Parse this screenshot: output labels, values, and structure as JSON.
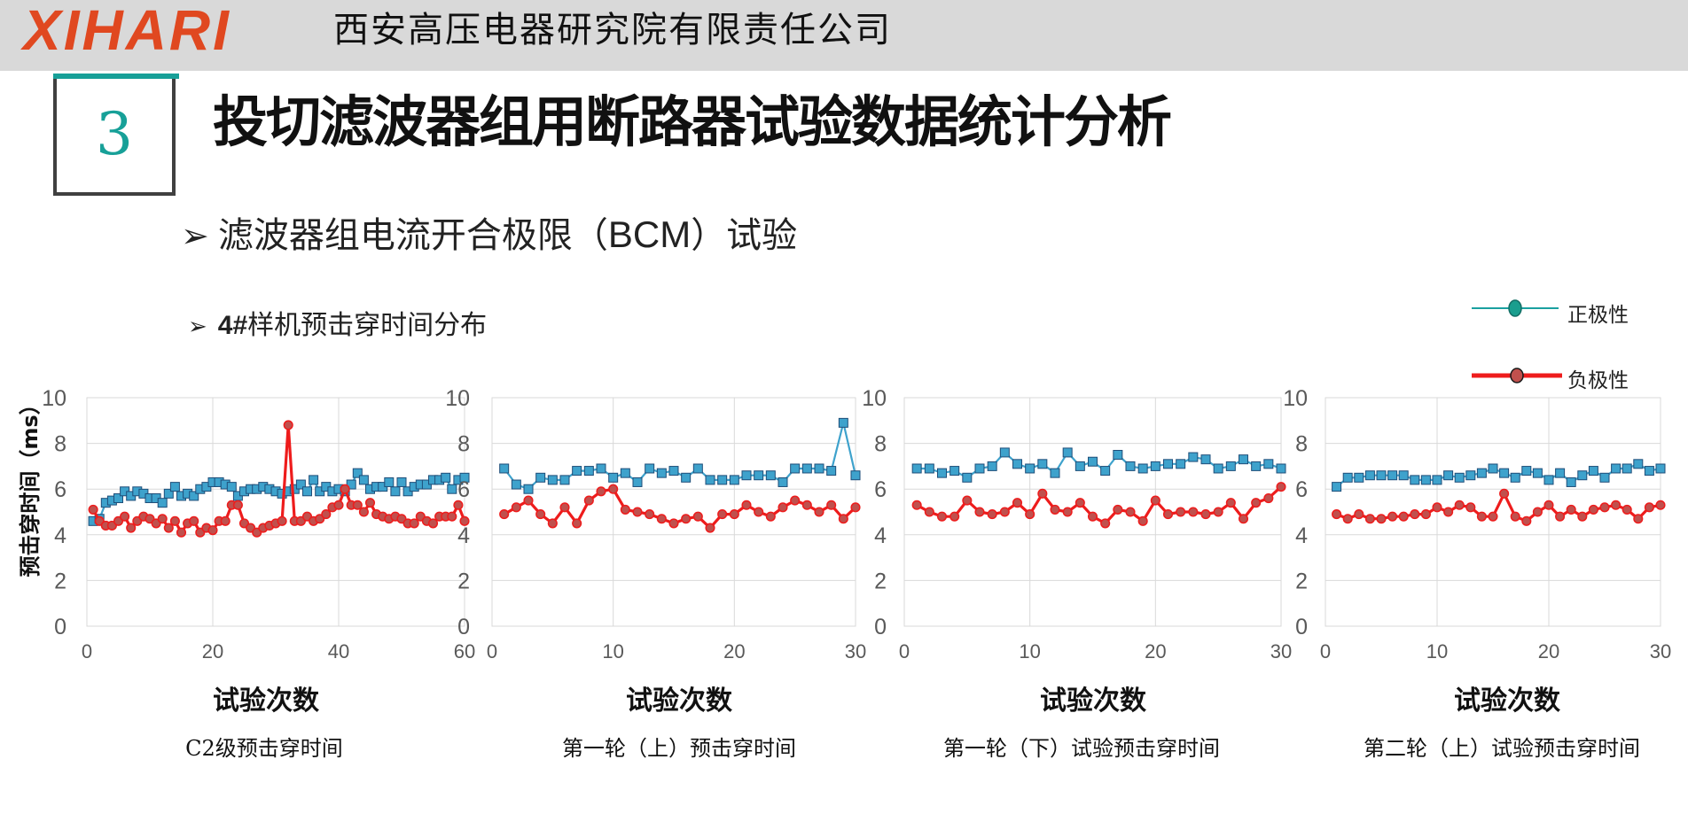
{
  "header": {
    "logo": "XIHARI",
    "company": "西安高压电器研究院有限责任公司"
  },
  "section": {
    "number": "3",
    "title": "投切滤波器组用断路器试验数据统计分析"
  },
  "subtitle": {
    "arrow": "➢",
    "pre": "滤波器组电流开合极限（",
    "latin": "BCM",
    "post": "）试验"
  },
  "subheading": {
    "arrow": "➢",
    "bold": "4#",
    "rest": "样机预击穿时间分布"
  },
  "legend": {
    "positive": "正极性",
    "negative": "负极性"
  },
  "colors": {
    "positive_line": "#3ea2cc",
    "positive_marker": "#3ea2cc",
    "negative_line": "#ee1c1c",
    "negative_marker": "#c0504d",
    "legend_positive_line": "#1aa0a0",
    "legend_positive_marker": "#1a9e8e",
    "grid": "#d9d9d9",
    "axis_text": "#595959"
  },
  "shared_ylabel": "预击穿时间（ms）",
  "chart_data": [
    {
      "type": "line",
      "caption": "C2级预击穿时间",
      "xlabel": "试验次数",
      "xlim": [
        0,
        60
      ],
      "ylim": [
        0,
        10
      ],
      "xticks": [
        "0",
        "20",
        "40",
        "60"
      ],
      "yticks": [
        "0",
        "2",
        "4",
        "6",
        "8",
        "10"
      ],
      "grid": true,
      "series": [
        {
          "name": "正极性",
          "marker": "square",
          "x": [
            1,
            2,
            3,
            4,
            5,
            6,
            7,
            8,
            9,
            10,
            11,
            12,
            13,
            14,
            15,
            16,
            17,
            18,
            19,
            20,
            21,
            22,
            23,
            24,
            25,
            26,
            27,
            28,
            29,
            30,
            31,
            32,
            33,
            34,
            35,
            36,
            37,
            38,
            39,
            40,
            41,
            42,
            43,
            44,
            45,
            46,
            47,
            48,
            49,
            50,
            51,
            52,
            53,
            54,
            55,
            56,
            57,
            58,
            59,
            60
          ],
          "values": [
            4.6,
            4.7,
            5.4,
            5.5,
            5.6,
            5.9,
            5.7,
            5.9,
            5.8,
            5.6,
            5.6,
            5.4,
            5.8,
            6.1,
            5.7,
            5.8,
            5.7,
            6.0,
            6.1,
            6.3,
            6.3,
            6.2,
            6.1,
            5.7,
            5.9,
            6.0,
            6.0,
            6.1,
            6.0,
            5.9,
            5.8,
            5.9,
            6.0,
            6.2,
            5.9,
            6.4,
            5.9,
            6.1,
            5.9,
            6.0,
            5.9,
            6.2,
            6.7,
            6.4,
            6.0,
            6.1,
            6.1,
            6.3,
            5.9,
            6.3,
            5.9,
            6.1,
            6.2,
            6.2,
            6.4,
            6.4,
            6.5,
            6.0,
            6.4,
            6.5
          ]
        },
        {
          "name": "负极性",
          "marker": "circle",
          "x": [
            1,
            2,
            3,
            4,
            5,
            6,
            7,
            8,
            9,
            10,
            11,
            12,
            13,
            14,
            15,
            16,
            17,
            18,
            19,
            20,
            21,
            22,
            23,
            24,
            25,
            26,
            27,
            28,
            29,
            30,
            31,
            32,
            33,
            34,
            35,
            36,
            37,
            38,
            39,
            40,
            41,
            42,
            43,
            44,
            45,
            46,
            47,
            48,
            49,
            50,
            51,
            52,
            53,
            54,
            55,
            56,
            57,
            58,
            59,
            60
          ],
          "values": [
            5.1,
            4.6,
            4.4,
            4.4,
            4.6,
            4.8,
            4.3,
            4.6,
            4.8,
            4.7,
            4.5,
            4.7,
            4.3,
            4.6,
            4.1,
            4.5,
            4.6,
            4.1,
            4.3,
            4.2,
            4.6,
            4.6,
            5.3,
            5.3,
            4.5,
            4.3,
            4.1,
            4.3,
            4.4,
            4.5,
            4.6,
            8.8,
            4.6,
            4.6,
            4.8,
            4.6,
            4.7,
            4.9,
            5.2,
            5.3,
            6.0,
            5.3,
            5.3,
            5.0,
            5.4,
            4.9,
            4.8,
            4.7,
            4.8,
            4.7,
            4.5,
            4.5,
            4.8,
            4.6,
            4.5,
            4.8,
            4.8,
            4.8,
            5.3,
            4.6
          ]
        }
      ]
    },
    {
      "type": "line",
      "caption": "第一轮（上）预击穿时间",
      "xlabel": "试验次数",
      "xlim": [
        0,
        30
      ],
      "ylim": [
        0,
        10
      ],
      "xticks": [
        "0",
        "10",
        "20",
        "30"
      ],
      "yticks": [
        "0",
        "2",
        "4",
        "6",
        "8",
        "10"
      ],
      "grid": true,
      "series": [
        {
          "name": "正极性",
          "marker": "square",
          "x": [
            1,
            2,
            3,
            4,
            5,
            6,
            7,
            8,
            9,
            10,
            11,
            12,
            13,
            14,
            15,
            16,
            17,
            18,
            19,
            20,
            21,
            22,
            23,
            24,
            25,
            26,
            27,
            28,
            29,
            30
          ],
          "values": [
            6.9,
            6.2,
            6.0,
            6.5,
            6.4,
            6.4,
            6.8,
            6.8,
            6.9,
            6.5,
            6.7,
            6.3,
            6.9,
            6.7,
            6.8,
            6.5,
            6.9,
            6.4,
            6.4,
            6.4,
            6.6,
            6.6,
            6.6,
            6.3,
            6.9,
            6.9,
            6.9,
            6.8,
            8.9,
            6.6
          ]
        },
        {
          "name": "负极性",
          "marker": "circle",
          "x": [
            1,
            2,
            3,
            4,
            5,
            6,
            7,
            8,
            9,
            10,
            11,
            12,
            13,
            14,
            15,
            16,
            17,
            18,
            19,
            20,
            21,
            22,
            23,
            24,
            25,
            26,
            27,
            28,
            29,
            30
          ],
          "values": [
            4.9,
            5.2,
            5.5,
            4.9,
            4.5,
            5.2,
            4.5,
            5.5,
            5.9,
            6.0,
            5.1,
            5.0,
            4.9,
            4.7,
            4.5,
            4.7,
            4.8,
            4.3,
            4.9,
            4.9,
            5.3,
            5.0,
            4.8,
            5.2,
            5.5,
            5.3,
            5.0,
            5.3,
            4.7,
            5.2
          ]
        }
      ]
    },
    {
      "type": "line",
      "caption": "第一轮（下）试验预击穿时间",
      "xlabel": "试验次数",
      "xlim": [
        0,
        30
      ],
      "ylim": [
        0,
        10
      ],
      "xticks": [
        "0",
        "10",
        "20",
        "30"
      ],
      "yticks": [
        "0",
        "2",
        "4",
        "6",
        "8",
        "10"
      ],
      "grid": true,
      "series": [
        {
          "name": "正极性",
          "marker": "square",
          "x": [
            1,
            2,
            3,
            4,
            5,
            6,
            7,
            8,
            9,
            10,
            11,
            12,
            13,
            14,
            15,
            16,
            17,
            18,
            19,
            20,
            21,
            22,
            23,
            24,
            25,
            26,
            27,
            28,
            29,
            30
          ],
          "values": [
            6.9,
            6.9,
            6.7,
            6.8,
            6.5,
            6.9,
            7.0,
            7.6,
            7.1,
            6.9,
            7.1,
            6.7,
            7.6,
            7.0,
            7.2,
            6.8,
            7.5,
            7.0,
            6.9,
            7.0,
            7.1,
            7.1,
            7.4,
            7.3,
            6.9,
            7.0,
            7.3,
            7.0,
            7.1,
            6.9
          ]
        },
        {
          "name": "负极性",
          "marker": "circle",
          "x": [
            1,
            2,
            3,
            4,
            5,
            6,
            7,
            8,
            9,
            10,
            11,
            12,
            13,
            14,
            15,
            16,
            17,
            18,
            19,
            20,
            21,
            22,
            23,
            24,
            25,
            26,
            27,
            28,
            29,
            30
          ],
          "values": [
            5.3,
            5.0,
            4.8,
            4.8,
            5.5,
            5.0,
            4.9,
            5.0,
            5.4,
            4.9,
            5.8,
            5.1,
            5.0,
            5.4,
            4.8,
            4.5,
            5.1,
            5.0,
            4.6,
            5.5,
            4.9,
            5.0,
            5.0,
            4.9,
            5.0,
            5.4,
            4.7,
            5.4,
            5.6,
            6.1
          ]
        }
      ]
    },
    {
      "type": "line",
      "caption": "第二轮（上）试验预击穿时间",
      "xlabel": "试验次数",
      "xlim": [
        0,
        30
      ],
      "ylim": [
        0,
        10
      ],
      "xticks": [
        "0",
        "10",
        "20",
        "30"
      ],
      "yticks": [
        "0",
        "2",
        "4",
        "6",
        "8",
        "10"
      ],
      "grid": true,
      "series": [
        {
          "name": "正极性",
          "marker": "square",
          "x": [
            1,
            2,
            3,
            4,
            5,
            6,
            7,
            8,
            9,
            10,
            11,
            12,
            13,
            14,
            15,
            16,
            17,
            18,
            19,
            20,
            21,
            22,
            23,
            24,
            25,
            26,
            27,
            28,
            29,
            30
          ],
          "values": [
            6.1,
            6.5,
            6.5,
            6.6,
            6.6,
            6.6,
            6.6,
            6.4,
            6.4,
            6.4,
            6.6,
            6.5,
            6.6,
            6.7,
            6.9,
            6.7,
            6.5,
            6.8,
            6.7,
            6.4,
            6.7,
            6.3,
            6.6,
            6.8,
            6.5,
            6.9,
            6.9,
            7.1,
            6.8,
            6.9
          ]
        },
        {
          "name": "负极性",
          "marker": "circle",
          "x": [
            1,
            2,
            3,
            4,
            5,
            6,
            7,
            8,
            9,
            10,
            11,
            12,
            13,
            14,
            15,
            16,
            17,
            18,
            19,
            20,
            21,
            22,
            23,
            24,
            25,
            26,
            27,
            28,
            29,
            30
          ],
          "values": [
            4.9,
            4.7,
            4.9,
            4.7,
            4.7,
            4.8,
            4.8,
            4.9,
            4.9,
            5.2,
            5.0,
            5.3,
            5.2,
            4.8,
            4.8,
            5.8,
            4.8,
            4.6,
            5.0,
            5.3,
            4.8,
            5.1,
            4.8,
            5.1,
            5.2,
            5.3,
            5.1,
            4.7,
            5.2,
            5.3
          ]
        }
      ]
    }
  ]
}
